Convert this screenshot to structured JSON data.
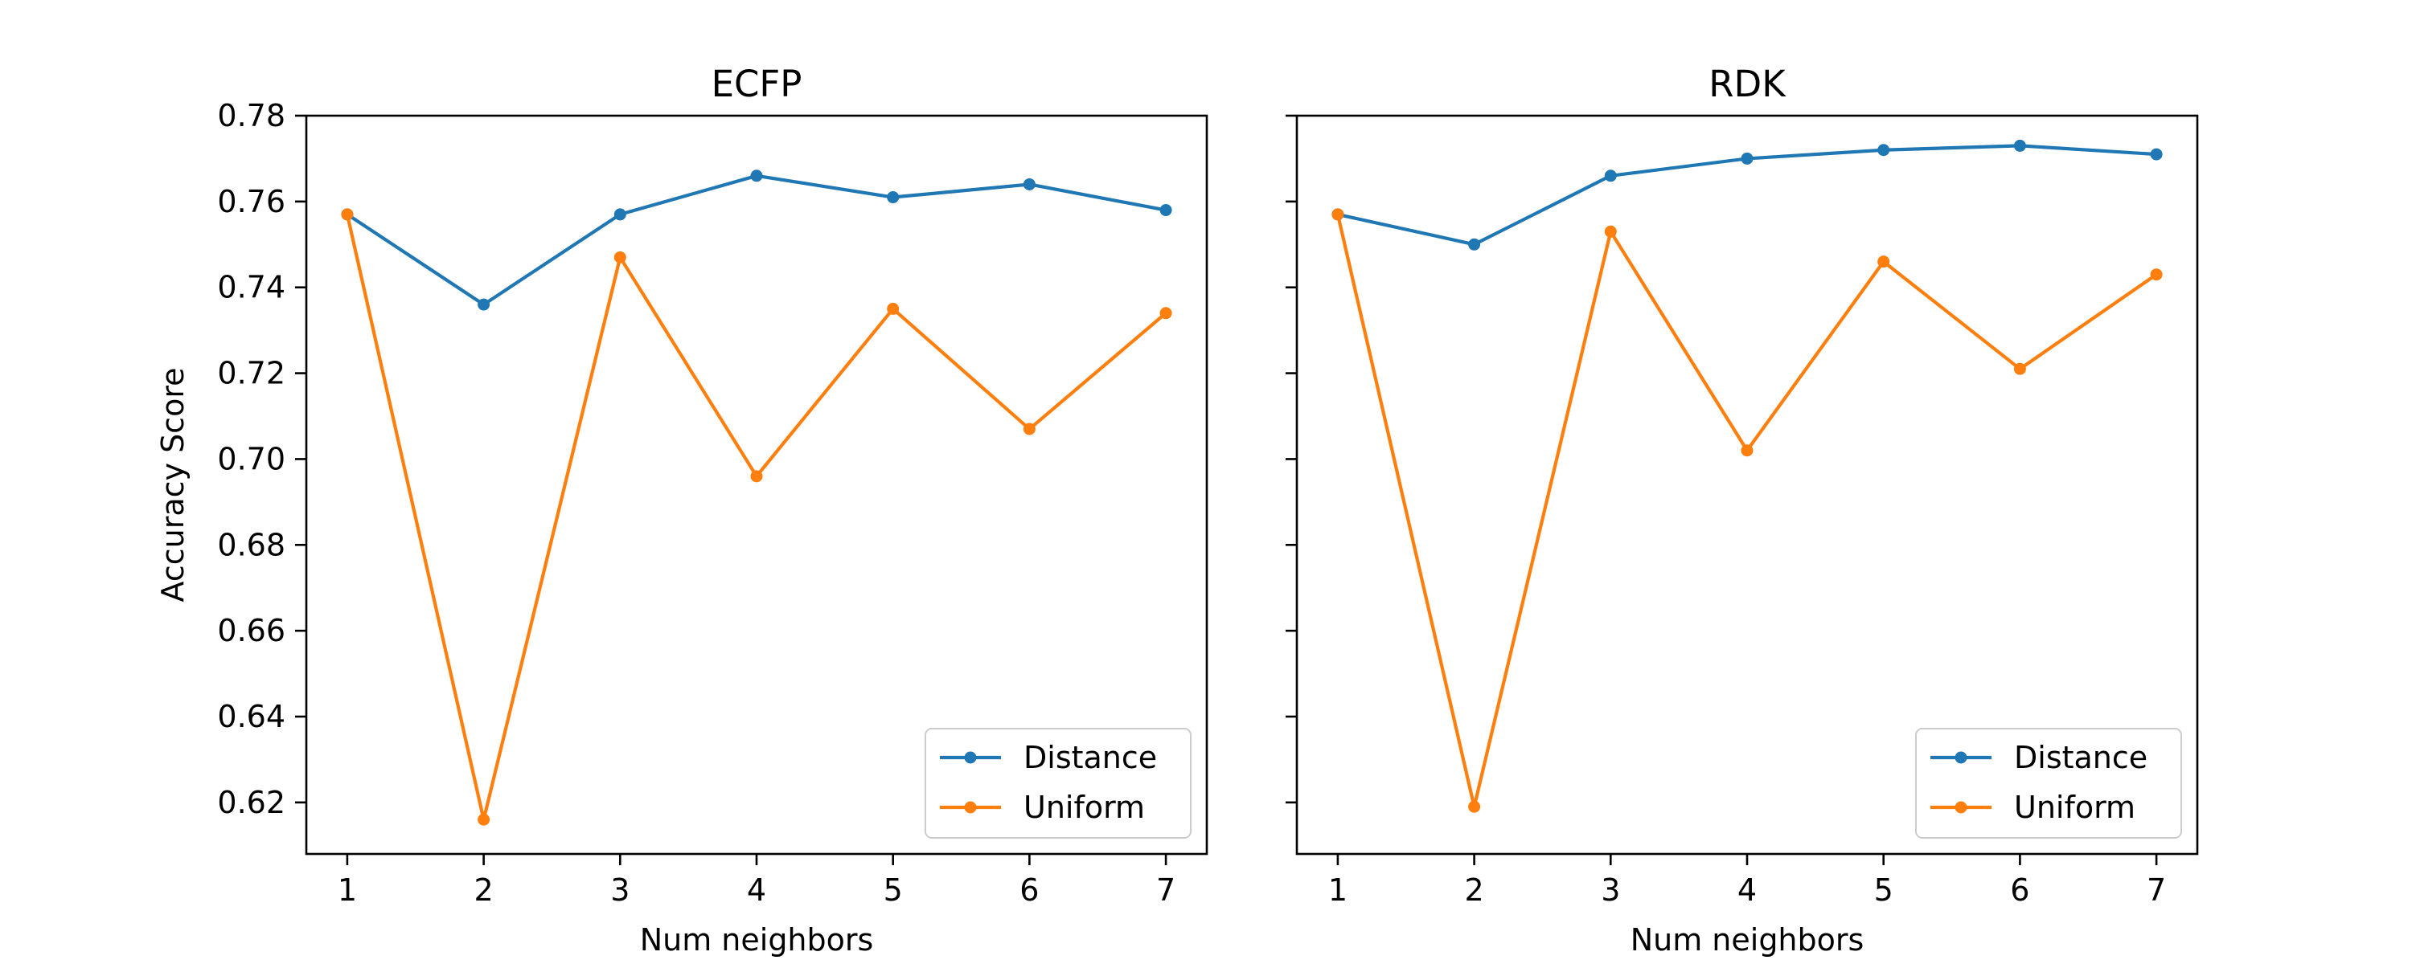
{
  "chart_data": [
    {
      "type": "line",
      "title": "ECFP",
      "xlabel": "Num neighbors",
      "ylabel": "Accuracy Score",
      "x": [
        1,
        2,
        3,
        4,
        5,
        6,
        7
      ],
      "xlim": [
        0.7,
        7.3
      ],
      "ylim": [
        0.608,
        0.78
      ],
      "xticks": [
        "1",
        "2",
        "3",
        "4",
        "5",
        "6",
        "7"
      ],
      "yticks": [
        "0.62",
        "0.64",
        "0.66",
        "0.68",
        "0.70",
        "0.72",
        "0.74",
        "0.76",
        "0.78"
      ],
      "show_y_tick_labels": true,
      "grid": false,
      "legend": "lower-right",
      "series": [
        {
          "name": "Distance",
          "color": "#1f77b4",
          "values": [
            0.757,
            0.736,
            0.757,
            0.766,
            0.761,
            0.764,
            0.758
          ]
        },
        {
          "name": "Uniform",
          "color": "#ff7f0e",
          "values": [
            0.757,
            0.616,
            0.747,
            0.696,
            0.735,
            0.707,
            0.734
          ]
        }
      ]
    },
    {
      "type": "line",
      "title": "RDK",
      "xlabel": "Num neighbors",
      "ylabel": "",
      "x": [
        1,
        2,
        3,
        4,
        5,
        6,
        7
      ],
      "xlim": [
        0.7,
        7.3
      ],
      "ylim": [
        0.608,
        0.78
      ],
      "xticks": [
        "1",
        "2",
        "3",
        "4",
        "5",
        "6",
        "7"
      ],
      "yticks": [
        "0.62",
        "0.64",
        "0.66",
        "0.68",
        "0.70",
        "0.72",
        "0.74",
        "0.76",
        "0.78"
      ],
      "show_y_tick_labels": false,
      "grid": false,
      "legend": "lower-right",
      "series": [
        {
          "name": "Distance",
          "color": "#1f77b4",
          "values": [
            0.757,
            0.75,
            0.766,
            0.77,
            0.772,
            0.773,
            0.771
          ]
        },
        {
          "name": "Uniform",
          "color": "#ff7f0e",
          "values": [
            0.757,
            0.619,
            0.753,
            0.702,
            0.746,
            0.721,
            0.743
          ]
        }
      ]
    }
  ]
}
